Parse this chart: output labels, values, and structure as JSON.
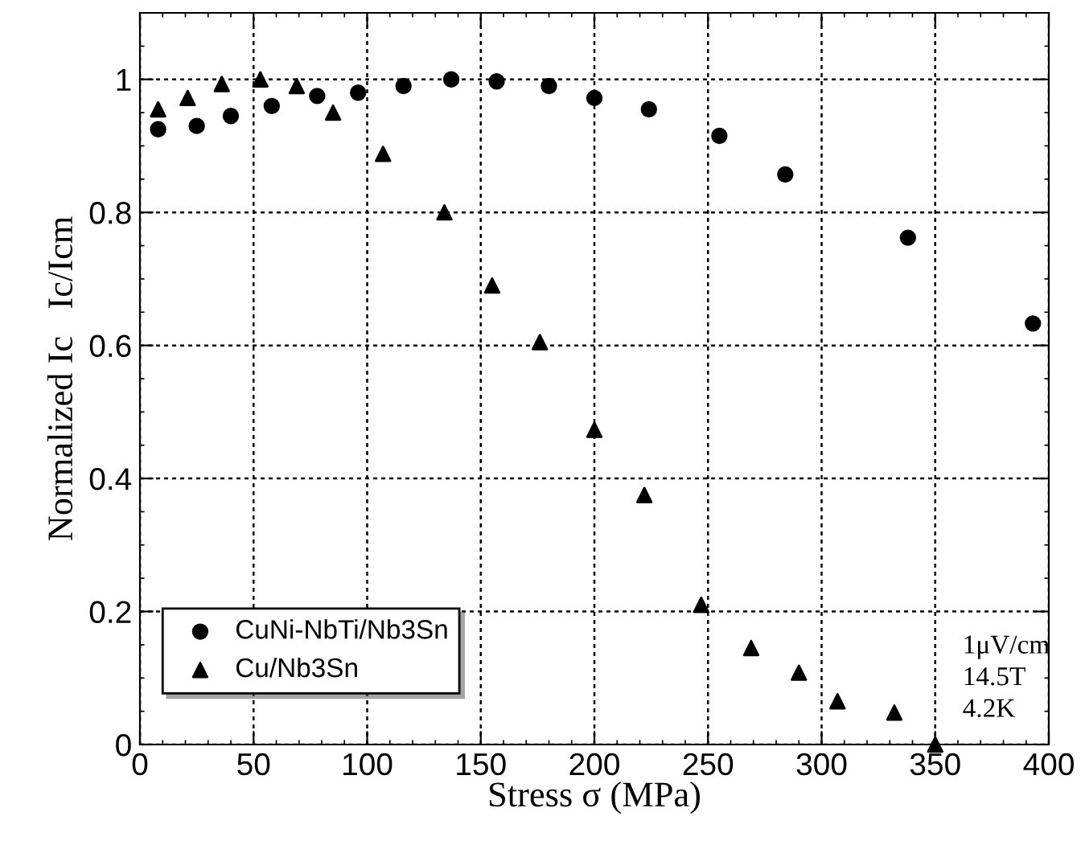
{
  "chart_data": {
    "type": "scatter",
    "xlabel": "Stress σ (MPa)",
    "ylabel": "Normalized Ic   Ic/Icm",
    "xlim": [
      0,
      400
    ],
    "ylim": [
      0,
      1.1
    ],
    "xticks": [
      0,
      50,
      100,
      150,
      200,
      250,
      300,
      350,
      400
    ],
    "yticks": [
      0,
      0.2,
      0.4,
      0.6,
      0.8,
      1
    ],
    "grid": true,
    "legend": "bottom left",
    "annotations": [
      "1μV/cm\n14.5T\n4.2K"
    ],
    "series": [
      {
        "name": "CuNi-NbTi/Nb3Sn",
        "color": "#000000",
        "marker": "circle",
        "x": [
          8,
          25,
          40,
          58,
          78,
          96,
          116,
          137,
          157,
          180,
          200,
          224,
          255,
          284,
          338,
          393
        ],
        "values": [
          0.925,
          0.93,
          0.945,
          0.96,
          0.975,
          0.98,
          0.99,
          1.0,
          0.997,
          0.99,
          0.972,
          0.955,
          0.915,
          0.857,
          0.762,
          0.633
        ]
      },
      {
        "name": "Cu/Nb3Sn",
        "color": "#000000",
        "marker": "triangle",
        "x": [
          8,
          21,
          36,
          53,
          69,
          85,
          107,
          134,
          155,
          176,
          200,
          222,
          247,
          269,
          290,
          307,
          332,
          350
        ],
        "values": [
          0.955,
          0.972,
          0.993,
          1.0,
          0.99,
          0.95,
          0.888,
          0.8,
          0.69,
          0.605,
          0.473,
          0.375,
          0.21,
          0.145,
          0.108,
          0.065,
          0.048,
          0.0
        ]
      }
    ]
  }
}
